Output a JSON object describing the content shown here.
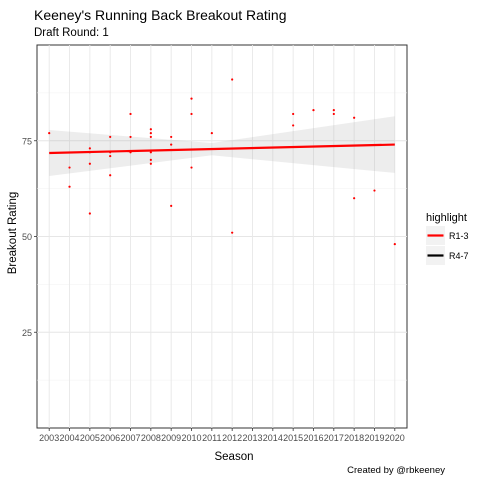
{
  "chart_data": {
    "type": "scatter",
    "title": "Keeney's Running Back Breakout Rating",
    "subtitle": "Draft Round: 1",
    "xlabel": "Season",
    "ylabel": "Breakout Rating",
    "caption": "Created by @rbkeeney",
    "categories": [
      "2003",
      "2004",
      "2005",
      "2006",
      "2007",
      "2008",
      "2009",
      "2010",
      "2011",
      "2012",
      "2013",
      "2014",
      "2015",
      "2016",
      "2017",
      "2018",
      "2019",
      "2020"
    ],
    "ylim": [
      0,
      100
    ],
    "yticks": [
      25,
      50,
      75
    ],
    "grid": true,
    "legend": {
      "title": "highlight",
      "position": "right",
      "entries": [
        {
          "label": "R1-3",
          "color": "#ff0000"
        },
        {
          "label": "R4-7",
          "color": "#000000"
        }
      ]
    },
    "points": [
      {
        "x": "2003",
        "y": 77
      },
      {
        "x": "2004",
        "y": 68
      },
      {
        "x": "2004",
        "y": 63
      },
      {
        "x": "2005",
        "y": 73
      },
      {
        "x": "2005",
        "y": 72
      },
      {
        "x": "2005",
        "y": 69
      },
      {
        "x": "2005",
        "y": 56
      },
      {
        "x": "2006",
        "y": 76
      },
      {
        "x": "2006",
        "y": 72
      },
      {
        "x": "2006",
        "y": 71
      },
      {
        "x": "2006",
        "y": 66
      },
      {
        "x": "2007",
        "y": 82
      },
      {
        "x": "2007",
        "y": 76
      },
      {
        "x": "2007",
        "y": 72
      },
      {
        "x": "2008",
        "y": 78
      },
      {
        "x": "2008",
        "y": 77
      },
      {
        "x": "2008",
        "y": 76
      },
      {
        "x": "2008",
        "y": 72
      },
      {
        "x": "2008",
        "y": 70
      },
      {
        "x": "2008",
        "y": 69
      },
      {
        "x": "2009",
        "y": 76
      },
      {
        "x": "2009",
        "y": 74
      },
      {
        "x": "2009",
        "y": 58
      },
      {
        "x": "2010",
        "y": 86
      },
      {
        "x": "2010",
        "y": 82
      },
      {
        "x": "2010",
        "y": 68
      },
      {
        "x": "2011",
        "y": 77
      },
      {
        "x": "2012",
        "y": 91
      },
      {
        "x": "2012",
        "y": 51
      },
      {
        "x": "2015",
        "y": 82
      },
      {
        "x": "2015",
        "y": 79
      },
      {
        "x": "2016",
        "y": 83
      },
      {
        "x": "2017",
        "y": 83
      },
      {
        "x": "2017",
        "y": 82
      },
      {
        "x": "2018",
        "y": 81
      },
      {
        "x": "2018",
        "y": 60
      },
      {
        "x": "2019",
        "y": 62
      },
      {
        "x": "2020",
        "y": 48
      }
    ],
    "trend": {
      "series": "R1-3",
      "color": "#ff0000",
      "start": {
        "x": "2003",
        "y": 71.8
      },
      "end": {
        "x": "2020",
        "y": 74.0
      },
      "band_lower": {
        "2003": 65.8,
        "2011": 71.2,
        "2020": 66.6
      },
      "band_upper": {
        "2003": 77.8,
        "2011": 74.4,
        "2020": 81.4
      }
    }
  }
}
